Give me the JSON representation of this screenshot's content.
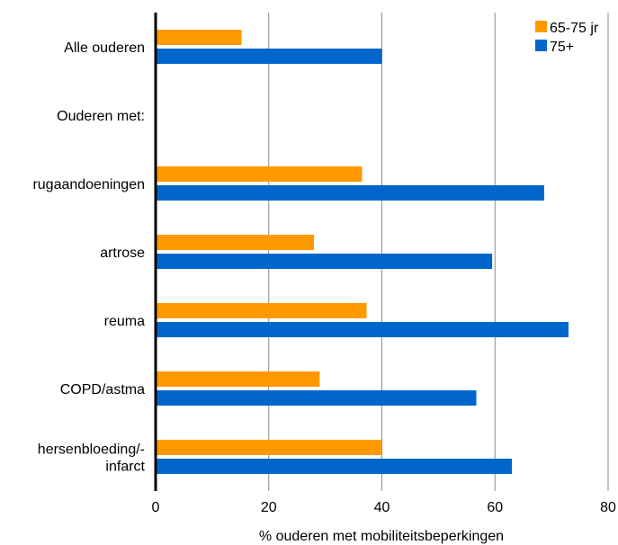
{
  "chart_data": {
    "type": "bar",
    "orientation": "horizontal",
    "categories": [
      [
        "Alle ouderen"
      ],
      [
        "Ouderen met:"
      ],
      [
        "rugaandoeningen"
      ],
      [
        "artrose"
      ],
      [
        "reuma"
      ],
      [
        "COPD/astma"
      ],
      [
        "hersenbloeding/-",
        "infarct"
      ]
    ],
    "series": [
      {
        "name": "65-75 jr",
        "color": "#FF9900",
        "values": [
          15.2,
          null,
          36.5,
          28.0,
          37.3,
          29.0,
          40.0
        ]
      },
      {
        "name": "75+",
        "color": "#0066CC",
        "values": [
          40.0,
          null,
          68.7,
          59.5,
          73.0,
          56.7,
          63.0
        ]
      }
    ],
    "xlabel": "% ouderen met mobiliteitsbeperkingen",
    "xlim": [
      0,
      80
    ],
    "xticks": [
      0,
      20,
      40,
      60,
      80
    ],
    "grid": true,
    "legend_position": "top-right"
  }
}
